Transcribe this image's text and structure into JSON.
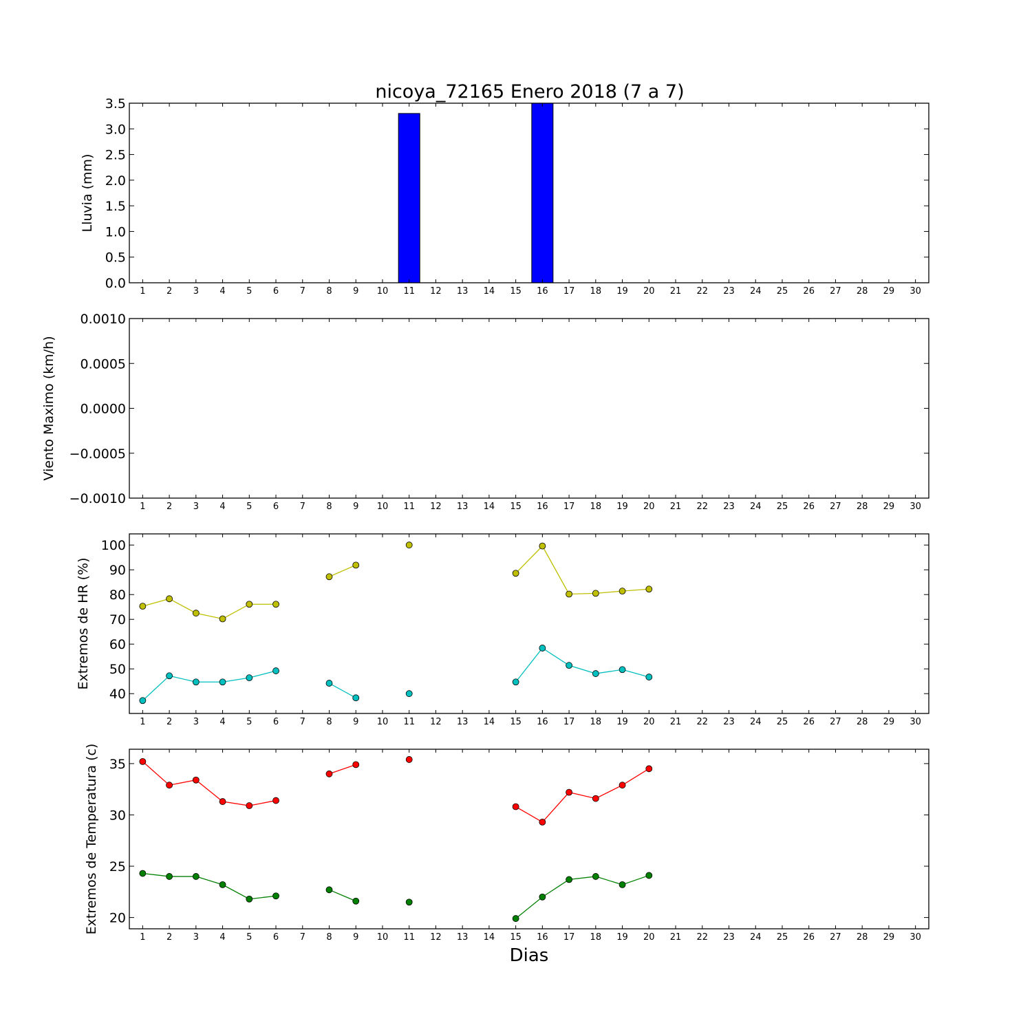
{
  "title": "nicoya_72165 Enero 2018  (7 a 7)",
  "xlabel": "Dias",
  "colors": {
    "bar_fill": "#0000ff",
    "hr_max": "#bfbf00",
    "hr_min": "#00bfbf",
    "temp_max": "#ff0000",
    "temp_min": "#008000"
  },
  "chart_data": [
    {
      "type": "bar",
      "ylabel": "Lluvia (mm)",
      "ylim": [
        0,
        3.5
      ],
      "yticks": [
        "0.0",
        "0.5",
        "1.0",
        "1.5",
        "2.0",
        "2.5",
        "3.0",
        "3.5"
      ],
      "xlim": [
        0.5,
        30.5
      ],
      "categories": [
        1,
        2,
        3,
        4,
        5,
        6,
        7,
        8,
        9,
        10,
        11,
        12,
        13,
        14,
        15,
        16,
        17,
        18,
        19,
        20
      ],
      "values": [
        0,
        0,
        0,
        0,
        0,
        0,
        null,
        0,
        0,
        null,
        3.3,
        null,
        null,
        null,
        0,
        3.5,
        0,
        0,
        0,
        0
      ],
      "color": "#0000ff"
    },
    {
      "type": "line",
      "ylabel": "Viento Maximo (km/h)",
      "ylim": [
        -0.001,
        0.001
      ],
      "yticks": [
        "−0.0010",
        "−0.0005",
        "0.0000",
        "0.0005",
        "0.0010"
      ],
      "xlim": [
        0.5,
        30.5
      ],
      "series": []
    },
    {
      "type": "line",
      "ylabel": "Extremos de HR (%)",
      "ylim": [
        32,
        104.5
      ],
      "yticks": [
        "40",
        "50",
        "60",
        "70",
        "80",
        "90",
        "100"
      ],
      "xlim": [
        0.5,
        30.5
      ],
      "series": [
        {
          "color": "#bfbf00",
          "x": [
            1,
            2,
            3,
            4,
            5,
            6,
            7,
            8,
            9,
            10,
            11,
            12,
            13,
            14,
            15,
            16,
            17,
            18,
            19,
            20
          ],
          "y": [
            75.3,
            78.3,
            72.5,
            70.2,
            76.1,
            76.1,
            null,
            87.2,
            91.9,
            null,
            100,
            null,
            null,
            null,
            88.6,
            99.6,
            80.2,
            80.5,
            81.4,
            82.2
          ]
        },
        {
          "color": "#00bfbf",
          "x": [
            1,
            2,
            3,
            4,
            5,
            6,
            7,
            8,
            9,
            10,
            11,
            12,
            13,
            14,
            15,
            16,
            17,
            18,
            19,
            20
          ],
          "y": [
            37.2,
            47.2,
            44.7,
            44.7,
            46.4,
            49.2,
            null,
            44.2,
            38.3,
            null,
            40,
            null,
            null,
            null,
            44.7,
            58.4,
            51.4,
            48.1,
            49.7,
            46.7
          ]
        }
      ]
    },
    {
      "type": "line",
      "ylabel": "Extremos de Temperatura (c)",
      "ylim": [
        18.9,
        36.4
      ],
      "yticks": [
        "20",
        "25",
        "30",
        "35"
      ],
      "xlim": [
        0.5,
        30.5
      ],
      "series": [
        {
          "color": "#ff0000",
          "x": [
            1,
            2,
            3,
            4,
            5,
            6,
            7,
            8,
            9,
            10,
            11,
            12,
            13,
            14,
            15,
            16,
            17,
            18,
            19,
            20
          ],
          "y": [
            35.2,
            32.9,
            33.4,
            31.3,
            30.9,
            31.4,
            null,
            34,
            34.9,
            null,
            35.4,
            null,
            null,
            null,
            30.8,
            29.3,
            32.2,
            31.6,
            32.9,
            34.5
          ]
        },
        {
          "color": "#008000",
          "x": [
            1,
            2,
            3,
            4,
            5,
            6,
            7,
            8,
            9,
            10,
            11,
            12,
            13,
            14,
            15,
            16,
            17,
            18,
            19,
            20
          ],
          "y": [
            24.3,
            24,
            24,
            23.2,
            21.8,
            22.1,
            null,
            22.7,
            21.6,
            null,
            21.5,
            null,
            null,
            null,
            19.9,
            22,
            23.7,
            24,
            23.2,
            24.1
          ]
        }
      ]
    }
  ]
}
